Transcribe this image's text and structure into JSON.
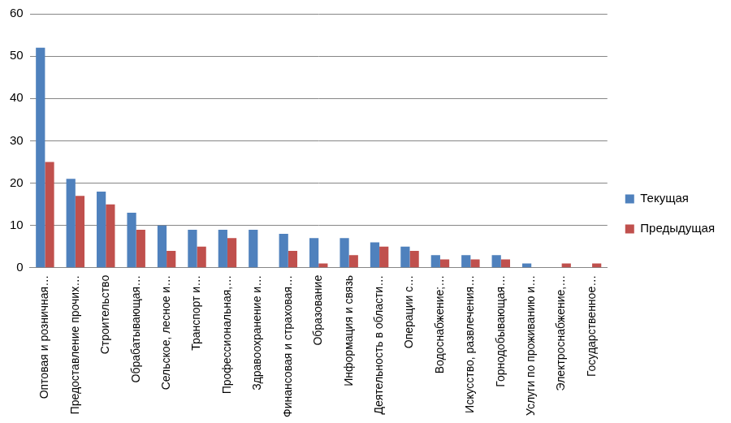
{
  "chart_data": {
    "type": "bar",
    "categories": [
      "Оптовая и розничная…",
      "Предоставление прочих…",
      "Строительство",
      "Обрабатывающая…",
      "Сельское, лесное и…",
      "Транспорт и…",
      "Профессиональная,…",
      "Здравоохранение и…",
      "Финансовая и страховая…",
      "Образование",
      "Информация и связь",
      "Деятельность в области…",
      "Операции с…",
      "Водоснабжение;…",
      "Искусство, развлечения…",
      "Горнодобывающая…",
      "Услуги по проживанию и…",
      "Электроснабжение,…",
      "Государственное…"
    ],
    "series": [
      {
        "name": "Текущая",
        "color": "#4f81bd",
        "values": [
          52,
          21,
          18,
          13,
          10,
          9,
          9,
          9,
          8,
          7,
          7,
          6,
          5,
          3,
          3,
          3,
          1,
          0,
          0
        ]
      },
      {
        "name": "Предыдущая",
        "color": "#c0504d",
        "values": [
          25,
          17,
          15,
          9,
          4,
          5,
          7,
          0,
          4,
          1,
          3,
          5,
          4,
          2,
          2,
          2,
          0,
          1,
          1
        ]
      }
    ],
    "ylim": [
      0,
      60
    ],
    "yticks": [
      0,
      10,
      20,
      30,
      40,
      50,
      60
    ],
    "grid": true,
    "legend": "right"
  }
}
